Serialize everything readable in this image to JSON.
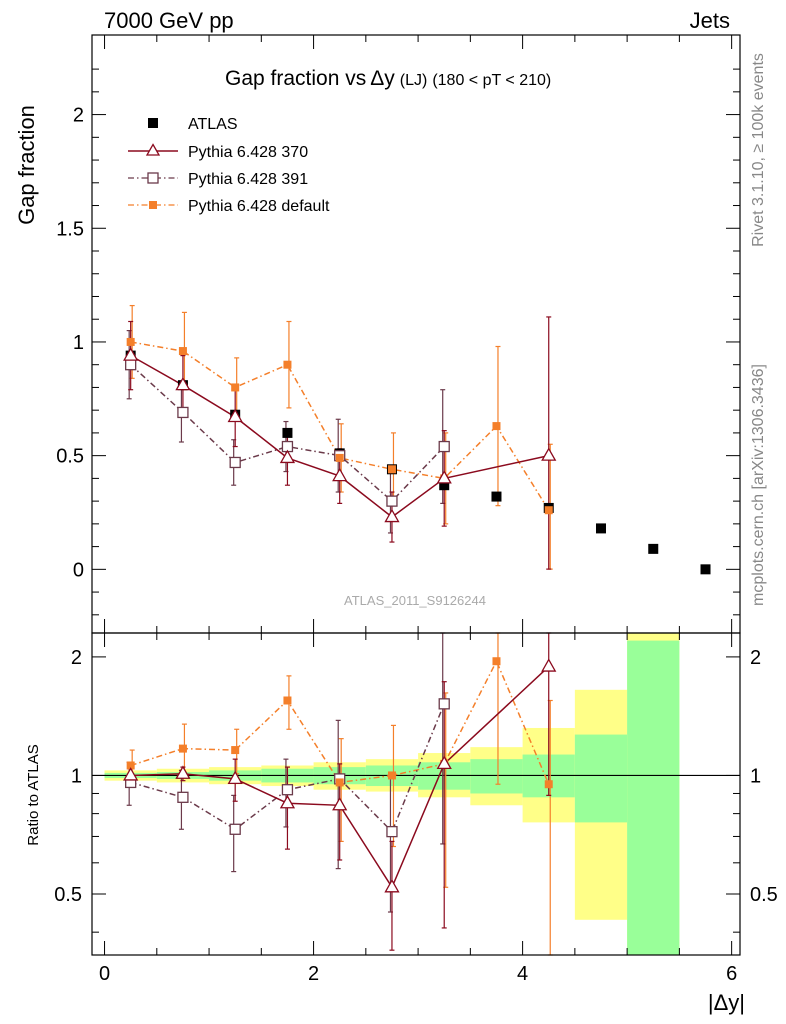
{
  "header": {
    "left": "7000 GeV pp",
    "right": "Jets"
  },
  "side_labels": {
    "rivet": "Rivet 3.1.10, ≥ 100k events",
    "mcplots": "mcplots.cern.ch [arXiv:1306.3436]"
  },
  "colors": {
    "data": "#000000",
    "p370": "#8b0a1e",
    "p391": "#6b3a4a",
    "pdef": "#f47f2a",
    "band_inner": "#99ff99",
    "band_outer": "#ffff88"
  },
  "chart_data": [
    {
      "type": "scatter",
      "panel": "main",
      "title_main": "Gap fraction vs",
      "title_delta": "Δy",
      "title_lj": "(LJ)",
      "title_range": "(180 < pT < 210)",
      "ylabel": "Gap fraction",
      "ylim": [
        -0.28,
        2.35
      ],
      "xlim": [
        -0.12,
        6.08
      ],
      "yticks": [
        "0",
        "0.5",
        "1",
        "1.5",
        "2"
      ],
      "watermark": "ATLAS_2011_S9126244",
      "x": [
        0.25,
        0.75,
        1.25,
        1.75,
        2.25,
        2.75,
        3.25,
        3.75,
        4.25,
        4.75,
        5.25,
        5.75
      ],
      "series": [
        {
          "name": "ATLAS",
          "values": [
            0.94,
            0.81,
            0.68,
            0.6,
            0.51,
            0.44,
            0.37,
            0.32,
            0.27,
            0.18,
            0.09,
            0.0
          ]
        },
        {
          "name": "Pythia 6.428 370",
          "values": [
            0.94,
            0.81,
            0.67,
            0.49,
            0.41,
            0.23,
            0.4,
            null,
            0.5
          ],
          "errors": [
            0.15,
            0.13,
            0.13,
            0.12,
            0.12,
            0.11,
            0.21,
            null,
            0.61
          ]
        },
        {
          "name": "Pythia 6.428 391",
          "values": [
            0.9,
            0.69,
            0.47,
            0.54,
            0.5,
            0.3,
            0.54
          ],
          "errors": [
            0.15,
            0.13,
            0.1,
            0.11,
            0.16,
            0.14,
            0.25
          ]
        },
        {
          "name": "Pythia 6.428 default",
          "values": [
            1.0,
            0.96,
            0.8,
            0.9,
            0.49,
            0.44,
            0.4,
            0.63,
            0.26
          ],
          "errors": [
            0.16,
            0.17,
            0.13,
            0.19,
            0.15,
            0.16,
            0.2,
            0.35,
            0.29
          ]
        }
      ]
    },
    {
      "type": "scatter",
      "panel": "ratio",
      "ylabel": "Ratio to ATLAS",
      "xlabel": "|Δy|",
      "ylim": [
        0.35,
        2.3
      ],
      "log_y": true,
      "xlim": [
        -0.12,
        6.08
      ],
      "xticks": [
        "0",
        "2",
        "4",
        "6"
      ],
      "yticks": [
        "0.5",
        "1",
        "2"
      ],
      "x": [
        0.25,
        0.75,
        1.25,
        1.75,
        2.25,
        2.75,
        3.25,
        3.75,
        4.25
      ],
      "bands": {
        "edges": [
          0,
          0.5,
          1,
          1.5,
          2,
          2.5,
          3,
          3.5,
          4,
          4.5,
          5,
          5.5
        ],
        "inner": [
          [
            0.985,
            1.015
          ],
          [
            0.98,
            1.02
          ],
          [
            0.97,
            1.03
          ],
          [
            0.96,
            1.04
          ],
          [
            0.95,
            1.05
          ],
          [
            0.94,
            1.06
          ],
          [
            0.92,
            1.08
          ],
          [
            0.9,
            1.1
          ],
          [
            0.88,
            1.13
          ],
          [
            0.76,
            1.27
          ],
          [
            0.35,
            2.2
          ]
        ],
        "outer": [
          [
            0.97,
            1.03
          ],
          [
            0.96,
            1.04
          ],
          [
            0.95,
            1.05
          ],
          [
            0.94,
            1.06
          ],
          [
            0.92,
            1.08
          ],
          [
            0.91,
            1.1
          ],
          [
            0.88,
            1.14
          ],
          [
            0.84,
            1.18
          ],
          [
            0.76,
            1.32
          ],
          [
            0.43,
            1.65
          ],
          [
            0.35,
            2.3
          ]
        ]
      },
      "series": [
        {
          "name": "Pythia 6.428 370",
          "values": [
            1.0,
            1.01,
            0.98,
            0.85,
            0.84,
            0.52,
            1.07,
            null,
            1.89
          ],
          "errors": [
            0.04,
            0.04,
            0.12,
            0.2,
            0.23,
            0.16,
            0.66,
            null,
            1.0
          ]
        },
        {
          "name": "Pythia 6.428 391",
          "values": [
            0.96,
            0.88,
            0.73,
            0.92,
            0.98,
            0.72,
            1.52
          ],
          "errors": [
            0.12,
            0.15,
            0.16,
            0.18,
            0.4,
            0.27,
            0.85
          ]
        },
        {
          "name": "Pythia 6.428 default",
          "values": [
            1.06,
            1.17,
            1.16,
            1.55,
            0.96,
            1.0,
            1.07,
            1.95,
            0.95
          ],
          "errors": [
            0.1,
            0.18,
            0.15,
            0.24,
            0.28,
            0.34,
            0.55,
            1.0,
            0.6
          ]
        }
      ]
    }
  ]
}
